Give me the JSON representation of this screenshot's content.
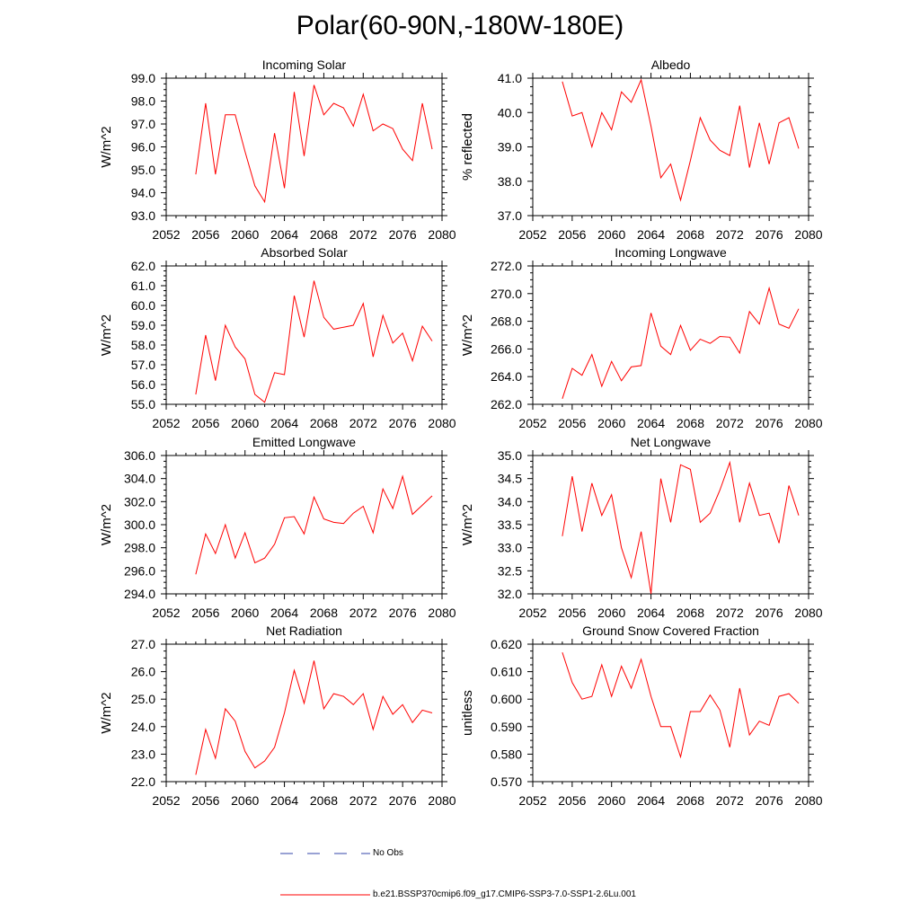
{
  "title": "Polar(60-90N,-180W-180E)",
  "colors": {
    "model": "#ff0000",
    "obs": "#3344aa",
    "axis": "#000000"
  },
  "legend": {
    "obs_label": "No Obs",
    "model_label": "b.e21.BSSP370cmip6.f09_g17.CMIP6-SSP3-7.0-SSP1-2.6Lu.001"
  },
  "chart_data": [
    {
      "type": "line",
      "title": "Incoming Solar",
      "ylabel": "W/m^2",
      "xlim": [
        2052,
        2080
      ],
      "xticks": [
        "2052",
        "2056",
        "2060",
        "2064",
        "2068",
        "2072",
        "2076",
        "2080"
      ],
      "ylim": [
        93.0,
        99.0
      ],
      "yticks": [
        "93.0",
        "94.0",
        "95.0",
        "96.0",
        "97.0",
        "98.0",
        "99.0"
      ],
      "x": [
        2055,
        2056,
        2057,
        2058,
        2059,
        2060,
        2061,
        2062,
        2063,
        2064,
        2065,
        2066,
        2067,
        2068,
        2069,
        2070,
        2071,
        2072,
        2073,
        2074,
        2075,
        2076,
        2077,
        2078,
        2079
      ],
      "series": [
        {
          "name": "b.e21.BSSP370cmip6.f09_g17.CMIP6-SSP3-7.0-SSP1-2.6Lu.001",
          "values": [
            94.8,
            97.9,
            94.8,
            97.4,
            97.4,
            95.8,
            94.3,
            93.6,
            96.6,
            94.2,
            98.4,
            95.6,
            98.7,
            97.4,
            97.9,
            97.7,
            96.9,
            98.3,
            96.7,
            97.0,
            96.8,
            95.9,
            95.4,
            97.9,
            95.9
          ]
        }
      ]
    },
    {
      "type": "line",
      "title": "Albedo",
      "ylabel": "% reflected",
      "xlim": [
        2052,
        2080
      ],
      "xticks": [
        "2052",
        "2056",
        "2060",
        "2064",
        "2068",
        "2072",
        "2076",
        "2080"
      ],
      "ylim": [
        37.0,
        41.0
      ],
      "yticks": [
        "37.0",
        "38.0",
        "39.0",
        "40.0",
        "41.0"
      ],
      "x": [
        2055,
        2056,
        2057,
        2058,
        2059,
        2060,
        2061,
        2062,
        2063,
        2064,
        2065,
        2066,
        2067,
        2068,
        2069,
        2070,
        2071,
        2072,
        2073,
        2074,
        2075,
        2076,
        2077,
        2078,
        2079
      ],
      "series": [
        {
          "name": "b.e21.BSSP370cmip6.f09_g17.CMIP6-SSP3-7.0-SSP1-2.6Lu.001",
          "values": [
            40.9,
            39.9,
            40.0,
            39.0,
            40.0,
            39.5,
            40.6,
            40.3,
            40.95,
            39.6,
            38.1,
            38.5,
            37.45,
            38.6,
            39.85,
            39.2,
            38.9,
            38.75,
            40.2,
            38.4,
            39.7,
            38.5,
            39.7,
            39.85,
            38.95
          ]
        }
      ]
    },
    {
      "type": "line",
      "title": "Absorbed Solar",
      "ylabel": "W/m^2",
      "xlim": [
        2052,
        2080
      ],
      "xticks": [
        "2052",
        "2056",
        "2060",
        "2064",
        "2068",
        "2072",
        "2076",
        "2080"
      ],
      "ylim": [
        55.0,
        62.0
      ],
      "yticks": [
        "55.0",
        "56.0",
        "57.0",
        "58.0",
        "59.0",
        "60.0",
        "61.0",
        "62.0"
      ],
      "x": [
        2055,
        2056,
        2057,
        2058,
        2059,
        2060,
        2061,
        2062,
        2063,
        2064,
        2065,
        2066,
        2067,
        2068,
        2069,
        2070,
        2071,
        2072,
        2073,
        2074,
        2075,
        2076,
        2077,
        2078,
        2079
      ],
      "series": [
        {
          "name": "b.e21.BSSP370cmip6.f09_g17.CMIP6-SSP3-7.0-SSP1-2.6Lu.001",
          "values": [
            55.5,
            58.5,
            56.2,
            59.0,
            57.9,
            57.3,
            55.5,
            55.1,
            56.6,
            56.5,
            60.5,
            58.4,
            61.25,
            59.4,
            58.8,
            58.9,
            59.0,
            60.1,
            57.4,
            59.5,
            58.1,
            58.6,
            57.2,
            58.95,
            58.2
          ]
        }
      ]
    },
    {
      "type": "line",
      "title": "Incoming Longwave",
      "ylabel": "W/m^2",
      "xlim": [
        2052,
        2080
      ],
      "xticks": [
        "2052",
        "2056",
        "2060",
        "2064",
        "2068",
        "2072",
        "2076",
        "2080"
      ],
      "ylim": [
        262.0,
        272.0
      ],
      "yticks": [
        "262.0",
        "264.0",
        "266.0",
        "268.0",
        "270.0",
        "272.0"
      ],
      "x": [
        2055,
        2056,
        2057,
        2058,
        2059,
        2060,
        2061,
        2062,
        2063,
        2064,
        2065,
        2066,
        2067,
        2068,
        2069,
        2070,
        2071,
        2072,
        2073,
        2074,
        2075,
        2076,
        2077,
        2078,
        2079
      ],
      "series": [
        {
          "name": "b.e21.BSSP370cmip6.f09_g17.CMIP6-SSP3-7.0-SSP1-2.6Lu.001",
          "values": [
            262.4,
            264.6,
            264.1,
            265.6,
            263.3,
            265.1,
            263.7,
            264.7,
            264.8,
            268.6,
            266.2,
            265.6,
            267.7,
            265.9,
            266.7,
            266.4,
            266.9,
            266.85,
            265.7,
            268.7,
            267.8,
            270.4,
            267.8,
            267.5,
            268.9
          ]
        }
      ]
    },
    {
      "type": "line",
      "title": "Emitted Longwave",
      "ylabel": "W/m^2",
      "xlim": [
        2052,
        2080
      ],
      "xticks": [
        "2052",
        "2056",
        "2060",
        "2064",
        "2068",
        "2072",
        "2076",
        "2080"
      ],
      "ylim": [
        294.0,
        306.0
      ],
      "yticks": [
        "294.0",
        "296.0",
        "298.0",
        "300.0",
        "302.0",
        "304.0",
        "306.0"
      ],
      "x": [
        2055,
        2056,
        2057,
        2058,
        2059,
        2060,
        2061,
        2062,
        2063,
        2064,
        2065,
        2066,
        2067,
        2068,
        2069,
        2070,
        2071,
        2072,
        2073,
        2074,
        2075,
        2076,
        2077,
        2078,
        2079
      ],
      "series": [
        {
          "name": "b.e21.BSSP370cmip6.f09_g17.CMIP6-SSP3-7.0-SSP1-2.6Lu.001",
          "values": [
            295.7,
            299.2,
            297.5,
            300.0,
            297.1,
            299.3,
            296.7,
            297.1,
            298.3,
            300.6,
            300.7,
            299.2,
            302.4,
            300.5,
            300.2,
            300.1,
            301.0,
            301.6,
            299.3,
            303.1,
            301.4,
            304.2,
            300.9,
            301.7,
            302.5
          ]
        }
      ]
    },
    {
      "type": "line",
      "title": "Net Longwave",
      "ylabel": "W/m^2",
      "xlim": [
        2052,
        2080
      ],
      "xticks": [
        "2052",
        "2056",
        "2060",
        "2064",
        "2068",
        "2072",
        "2076",
        "2080"
      ],
      "ylim": [
        32.0,
        35.0
      ],
      "yticks": [
        "32.0",
        "32.5",
        "33.0",
        "33.5",
        "34.0",
        "34.5",
        "35.0"
      ],
      "x": [
        2055,
        2056,
        2057,
        2058,
        2059,
        2060,
        2061,
        2062,
        2063,
        2064,
        2065,
        2066,
        2067,
        2068,
        2069,
        2070,
        2071,
        2072,
        2073,
        2074,
        2075,
        2076,
        2077,
        2078,
        2079
      ],
      "series": [
        {
          "name": "b.e21.BSSP370cmip6.f09_g17.CMIP6-SSP3-7.0-SSP1-2.6Lu.001",
          "values": [
            33.25,
            34.55,
            33.35,
            34.4,
            33.7,
            34.15,
            33.0,
            32.35,
            33.35,
            32.0,
            34.5,
            33.55,
            34.8,
            34.7,
            33.55,
            33.75,
            34.25,
            34.85,
            33.55,
            34.4,
            33.7,
            33.75,
            33.1,
            34.35,
            33.7
          ]
        }
      ]
    },
    {
      "type": "line",
      "title": "Net Radiation",
      "ylabel": "W/m^2",
      "xlim": [
        2052,
        2080
      ],
      "xticks": [
        "2052",
        "2056",
        "2060",
        "2064",
        "2068",
        "2072",
        "2076",
        "2080"
      ],
      "ylim": [
        22.0,
        27.0
      ],
      "yticks": [
        "22.0",
        "23.0",
        "24.0",
        "25.0",
        "26.0",
        "27.0"
      ],
      "x": [
        2055,
        2056,
        2057,
        2058,
        2059,
        2060,
        2061,
        2062,
        2063,
        2064,
        2065,
        2066,
        2067,
        2068,
        2069,
        2070,
        2071,
        2072,
        2073,
        2074,
        2075,
        2076,
        2077,
        2078,
        2079
      ],
      "series": [
        {
          "name": "b.e21.BSSP370cmip6.f09_g17.CMIP6-SSP3-7.0-SSP1-2.6Lu.001",
          "values": [
            22.25,
            23.9,
            22.85,
            24.65,
            24.2,
            23.1,
            22.5,
            22.75,
            23.25,
            24.5,
            26.05,
            24.85,
            26.4,
            24.65,
            25.2,
            25.1,
            24.8,
            25.2,
            23.9,
            25.1,
            24.45,
            24.8,
            24.15,
            24.6,
            24.5
          ]
        }
      ]
    },
    {
      "type": "line",
      "title": "Ground Snow Covered Fraction",
      "ylabel": "unitless",
      "xlim": [
        2052,
        2080
      ],
      "xticks": [
        "2052",
        "2056",
        "2060",
        "2064",
        "2068",
        "2072",
        "2076",
        "2080"
      ],
      "ylim": [
        0.57,
        0.62
      ],
      "yticks": [
        "0.570",
        "0.580",
        "0.590",
        "0.600",
        "0.610",
        "0.620"
      ],
      "x": [
        2055,
        2056,
        2057,
        2058,
        2059,
        2060,
        2061,
        2062,
        2063,
        2064,
        2065,
        2066,
        2067,
        2068,
        2069,
        2070,
        2071,
        2072,
        2073,
        2074,
        2075,
        2076,
        2077,
        2078,
        2079
      ],
      "series": [
        {
          "name": "b.e21.BSSP370cmip6.f09_g17.CMIP6-SSP3-7.0-SSP1-2.6Lu.001",
          "values": [
            0.617,
            0.606,
            0.6,
            0.601,
            0.6125,
            0.601,
            0.612,
            0.604,
            0.6145,
            0.601,
            0.59,
            0.59,
            0.579,
            0.5955,
            0.5955,
            0.6015,
            0.596,
            0.5825,
            0.604,
            0.587,
            0.592,
            0.5905,
            0.601,
            0.602,
            0.5985
          ]
        }
      ]
    }
  ]
}
